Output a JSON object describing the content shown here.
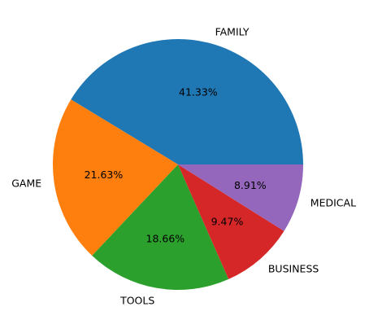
{
  "chart_data": {
    "type": "pie",
    "categories": [
      "FAMILY",
      "GAME",
      "TOOLS",
      "BUSINESS",
      "MEDICAL"
    ],
    "values": [
      41.33,
      21.63,
      18.66,
      9.47,
      8.91
    ],
    "value_labels": [
      "41.33%",
      "21.63%",
      "18.66%",
      "9.47%",
      "8.91%"
    ],
    "colors": [
      "#1f77b4",
      "#ff7f0e",
      "#2ca02c",
      "#d62728",
      "#9467bd"
    ],
    "start_angle_deg": 0,
    "direction": "counterclockwise",
    "title": "",
    "legend": "none"
  }
}
